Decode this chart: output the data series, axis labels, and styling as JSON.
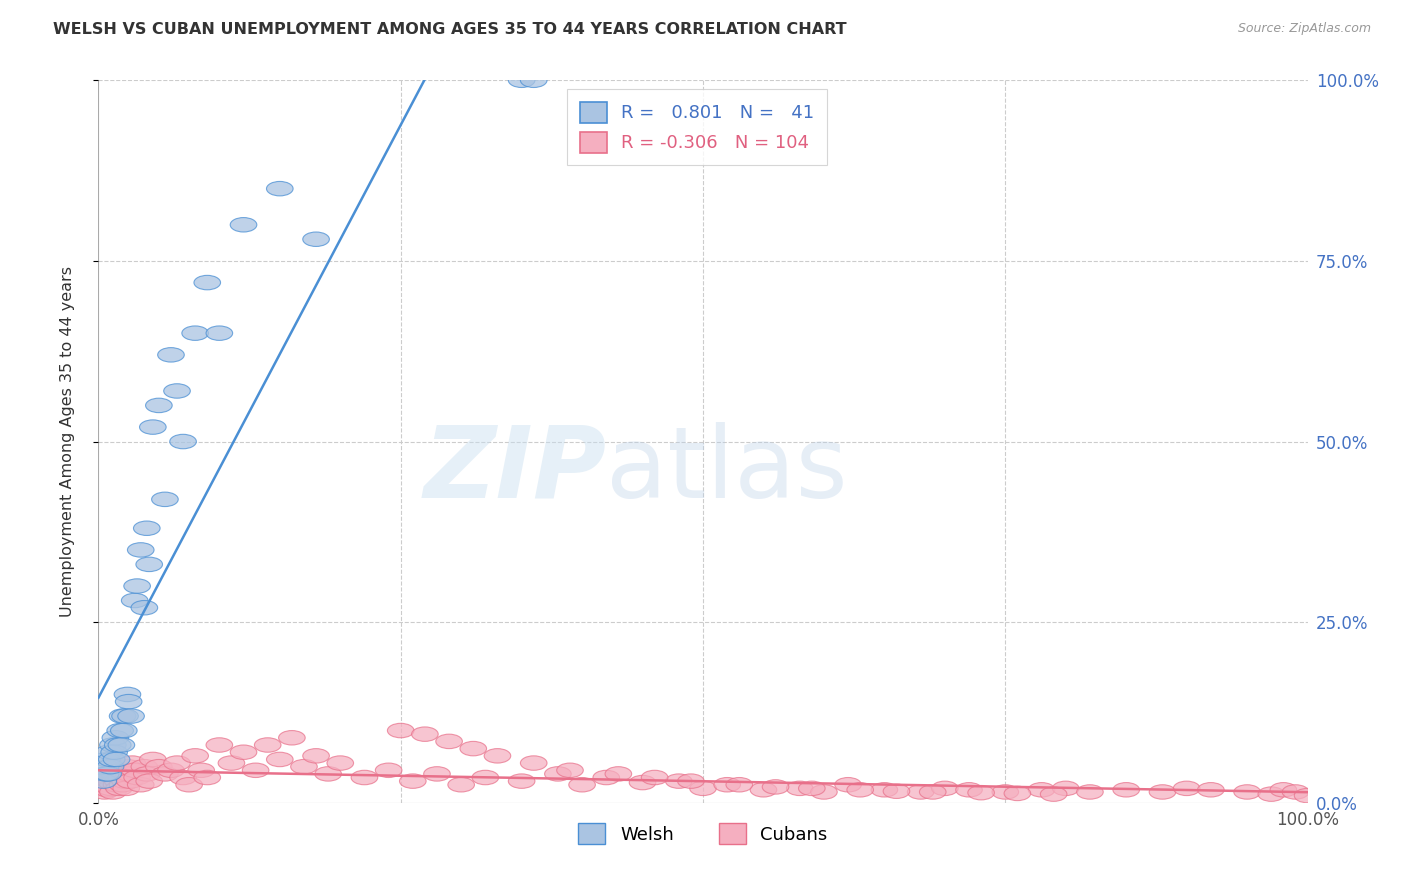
{
  "title": "WELSH VS CUBAN UNEMPLOYMENT AMONG AGES 35 TO 44 YEARS CORRELATION CHART",
  "source": "Source: ZipAtlas.com",
  "ylabel": "Unemployment Among Ages 35 to 44 years",
  "welsh_color": "#aac4e2",
  "cuban_color": "#f5afc0",
  "welsh_line_color": "#4a8fd4",
  "cuban_line_color": "#e8708a",
  "welsh_R": 0.801,
  "welsh_N": 41,
  "cuban_R": -0.306,
  "cuban_N": 104,
  "welsh_scatter_x": [
    0.004,
    0.006,
    0.006,
    0.007,
    0.008,
    0.009,
    0.01,
    0.011,
    0.012,
    0.013,
    0.014,
    0.015,
    0.016,
    0.018,
    0.019,
    0.02,
    0.021,
    0.022,
    0.024,
    0.025,
    0.027,
    0.03,
    0.032,
    0.035,
    0.038,
    0.04,
    0.042,
    0.045,
    0.05,
    0.055,
    0.06,
    0.065,
    0.07,
    0.08,
    0.09,
    0.1,
    0.12,
    0.15,
    0.18,
    0.35,
    0.36
  ],
  "welsh_scatter_y": [
    0.03,
    0.05,
    0.04,
    0.06,
    0.04,
    0.07,
    0.05,
    0.06,
    0.08,
    0.07,
    0.09,
    0.06,
    0.08,
    0.1,
    0.08,
    0.12,
    0.1,
    0.12,
    0.15,
    0.14,
    0.12,
    0.28,
    0.3,
    0.35,
    0.27,
    0.38,
    0.33,
    0.52,
    0.55,
    0.42,
    0.62,
    0.57,
    0.5,
    0.65,
    0.72,
    0.65,
    0.8,
    0.85,
    0.78,
    1.0,
    1.0
  ],
  "cuban_scatter_x": [
    0.003,
    0.005,
    0.006,
    0.007,
    0.008,
    0.009,
    0.01,
    0.011,
    0.012,
    0.013,
    0.015,
    0.016,
    0.017,
    0.018,
    0.019,
    0.02,
    0.021,
    0.022,
    0.023,
    0.024,
    0.025,
    0.026,
    0.028,
    0.03,
    0.032,
    0.035,
    0.038,
    0.04,
    0.042,
    0.045,
    0.05,
    0.055,
    0.06,
    0.065,
    0.07,
    0.075,
    0.08,
    0.085,
    0.09,
    0.1,
    0.11,
    0.12,
    0.13,
    0.14,
    0.15,
    0.16,
    0.17,
    0.18,
    0.19,
    0.2,
    0.22,
    0.24,
    0.26,
    0.28,
    0.3,
    0.32,
    0.35,
    0.38,
    0.4,
    0.42,
    0.45,
    0.48,
    0.5,
    0.52,
    0.55,
    0.58,
    0.6,
    0.62,
    0.65,
    0.68,
    0.7,
    0.72,
    0.75,
    0.78,
    0.8,
    0.82,
    0.85,
    0.88,
    0.9,
    0.92,
    0.95,
    0.97,
    0.98,
    0.99,
    1.0,
    0.25,
    0.27,
    0.29,
    0.31,
    0.33,
    0.36,
    0.39,
    0.43,
    0.46,
    0.49,
    0.53,
    0.56,
    0.59,
    0.63,
    0.66,
    0.69,
    0.73,
    0.76,
    0.79
  ],
  "cuban_scatter_y": [
    0.02,
    0.015,
    0.03,
    0.025,
    0.018,
    0.035,
    0.02,
    0.028,
    0.015,
    0.04,
    0.025,
    0.03,
    0.02,
    0.045,
    0.035,
    0.025,
    0.04,
    0.03,
    0.02,
    0.05,
    0.04,
    0.03,
    0.055,
    0.045,
    0.035,
    0.025,
    0.05,
    0.04,
    0.03,
    0.06,
    0.05,
    0.04,
    0.045,
    0.055,
    0.035,
    0.025,
    0.065,
    0.045,
    0.035,
    0.08,
    0.055,
    0.07,
    0.045,
    0.08,
    0.06,
    0.09,
    0.05,
    0.065,
    0.04,
    0.055,
    0.035,
    0.045,
    0.03,
    0.04,
    0.025,
    0.035,
    0.03,
    0.04,
    0.025,
    0.035,
    0.028,
    0.03,
    0.02,
    0.025,
    0.018,
    0.02,
    0.015,
    0.025,
    0.018,
    0.015,
    0.02,
    0.018,
    0.015,
    0.018,
    0.02,
    0.015,
    0.018,
    0.015,
    0.02,
    0.018,
    0.015,
    0.012,
    0.018,
    0.015,
    0.01,
    0.1,
    0.095,
    0.085,
    0.075,
    0.065,
    0.055,
    0.045,
    0.04,
    0.035,
    0.03,
    0.025,
    0.022,
    0.02,
    0.018,
    0.016,
    0.015,
    0.014,
    0.013,
    0.012
  ]
}
